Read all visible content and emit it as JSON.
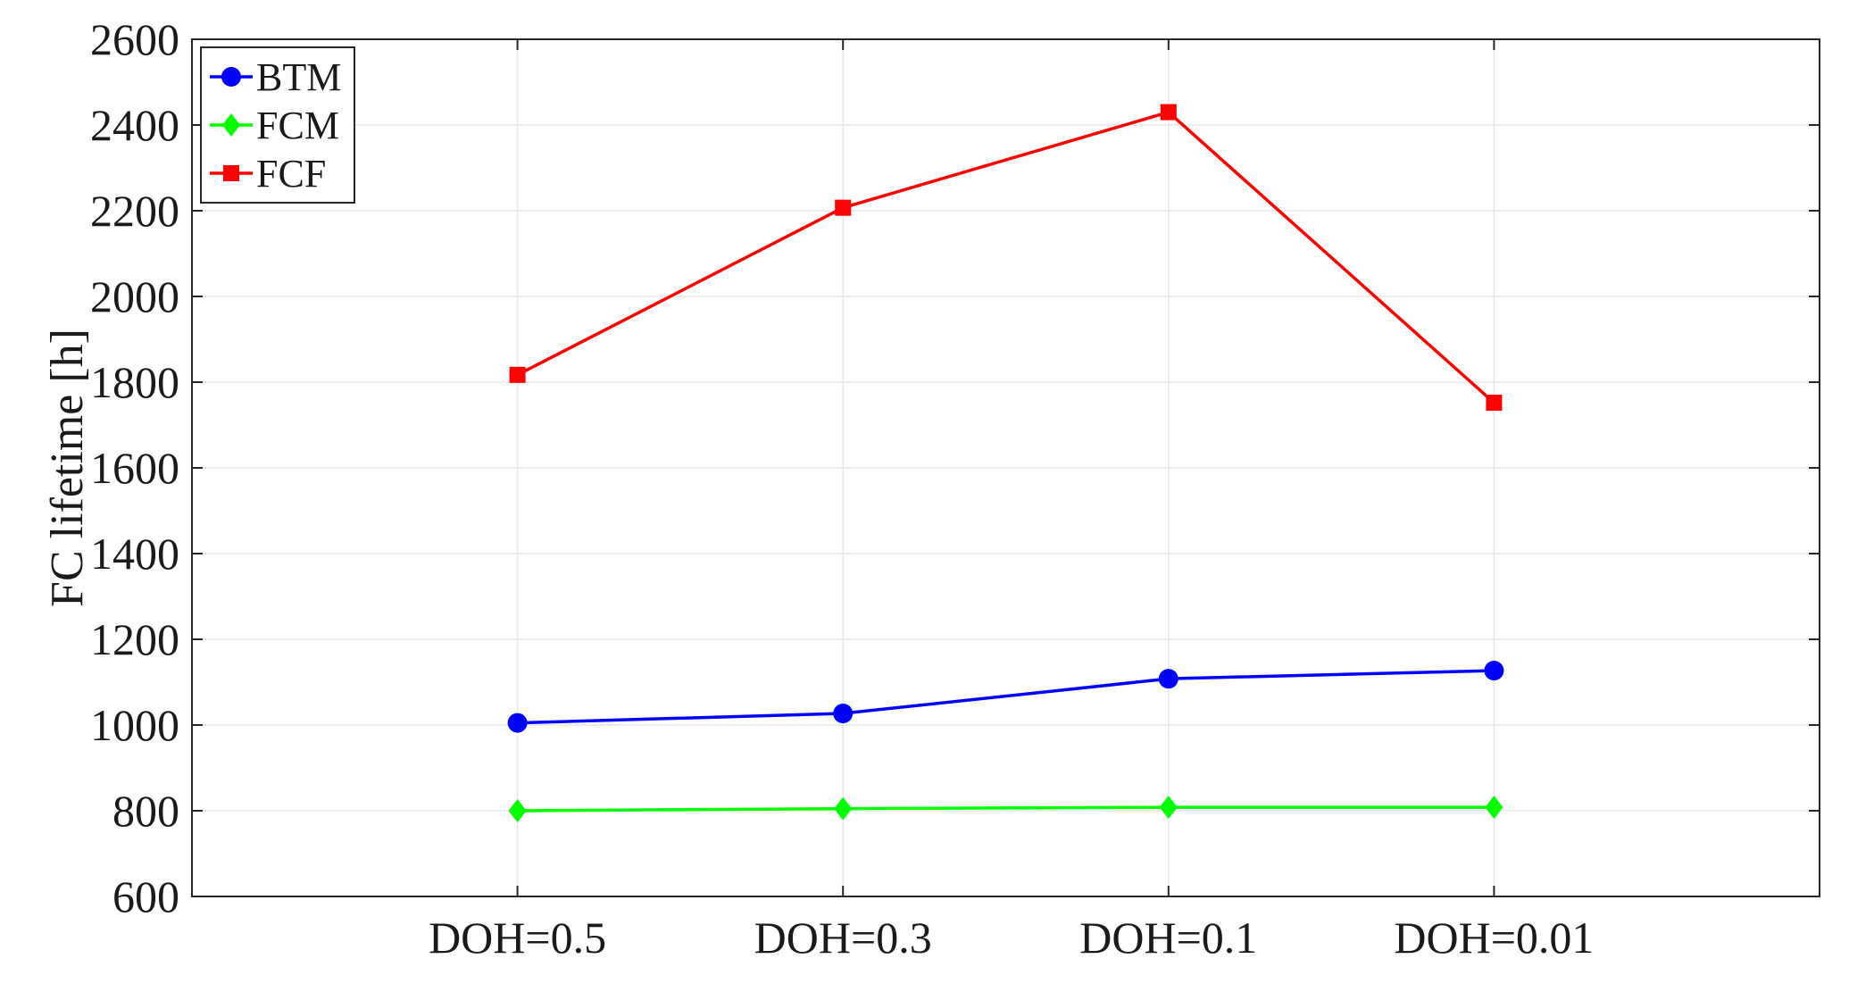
{
  "chart_data": {
    "type": "line",
    "categories": [
      "DOH=0.5",
      "DOH=0.3",
      "DOH=0.1",
      "DOH=0.01"
    ],
    "ylabel": "FC lifetime [h]",
    "ylim": [
      600,
      2600
    ],
    "yticks": [
      600,
      800,
      1000,
      1200,
      1400,
      1600,
      1800,
      2000,
      2200,
      2400,
      2600
    ],
    "grid": true,
    "legend_position": "top-left",
    "series": [
      {
        "name": "BTM",
        "color": "#0000ff",
        "marker": "circle",
        "values": [
          1005,
          1027,
          1108,
          1127
        ]
      },
      {
        "name": "FCM",
        "color": "#00ff00",
        "marker": "diamond",
        "values": [
          800,
          805,
          808,
          808
        ]
      },
      {
        "name": "FCF",
        "color": "#ff0000",
        "marker": "square",
        "values": [
          1817,
          2207,
          2430,
          1752
        ]
      }
    ]
  }
}
